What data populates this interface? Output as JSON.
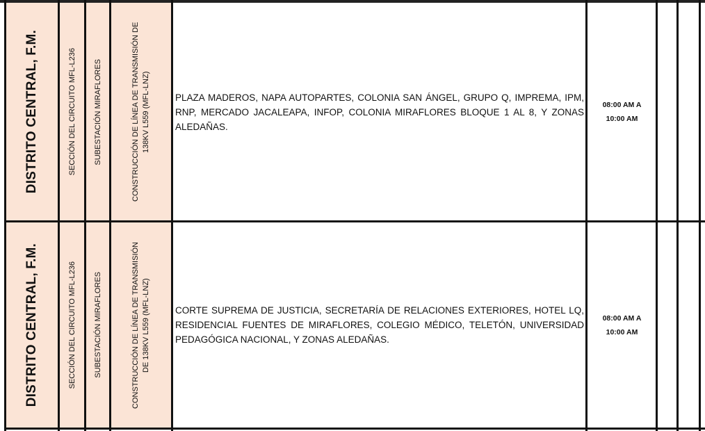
{
  "rows": [
    {
      "municipio": "DISTRITO CENTRAL, F.M.",
      "seccion": "SECCIÓN DEL CIRCUITO MFL-L236",
      "subestacion": "SUBESTACIÓN MIRAFLORES",
      "trabajo": "CONSTRUCCIÓN DE LÍNEA DE TRANSMISIÓN DE 138KV L559 (MFL-LNZ)",
      "zonas": "PLAZA MADEROS, NAPA AUTOPARTES, COLONIA SAN ÁNGEL, GRUPO Q, IMPREMA, IPM, RNP, MERCADO JACALEAPA, INFOP, COLONIA MIRAFLORES BLOQUE 1 AL 8, Y ZONAS ALEDAÑAS.",
      "horario_line1": "08:00 AM A",
      "horario_line2": "10:00 AM"
    },
    {
      "municipio": "DISTRITO CENTRAL, F.M.",
      "seccion": "SECCIÓN DEL CIRCUITO MFL-L236",
      "subestacion": "SUBESTACIÓN MIRAFLORES",
      "trabajo": "CONSTRUCCIÓN DE LÍNEA DE TRANSMISIÓN DE 138KV L559 (MFL-LNZ)",
      "zonas": "CORTE SUPREMA DE JUSTICIA, SECRETARÍA DE RELACIONES EXTERIORES, HOTEL LQ, RESIDENCIAL FUENTES DE MIRAFLORES, COLEGIO MÉDICO, TELETÓN, UNIVERSIDAD PEDAGÓGICA NACIONAL, Y ZONAS ALEDAÑAS.",
      "horario_line1": "08:00 AM A",
      "horario_line2": "10:00 AM"
    }
  ],
  "colors": {
    "highlight_fill": "#fbe4d6",
    "border": "#111111"
  }
}
